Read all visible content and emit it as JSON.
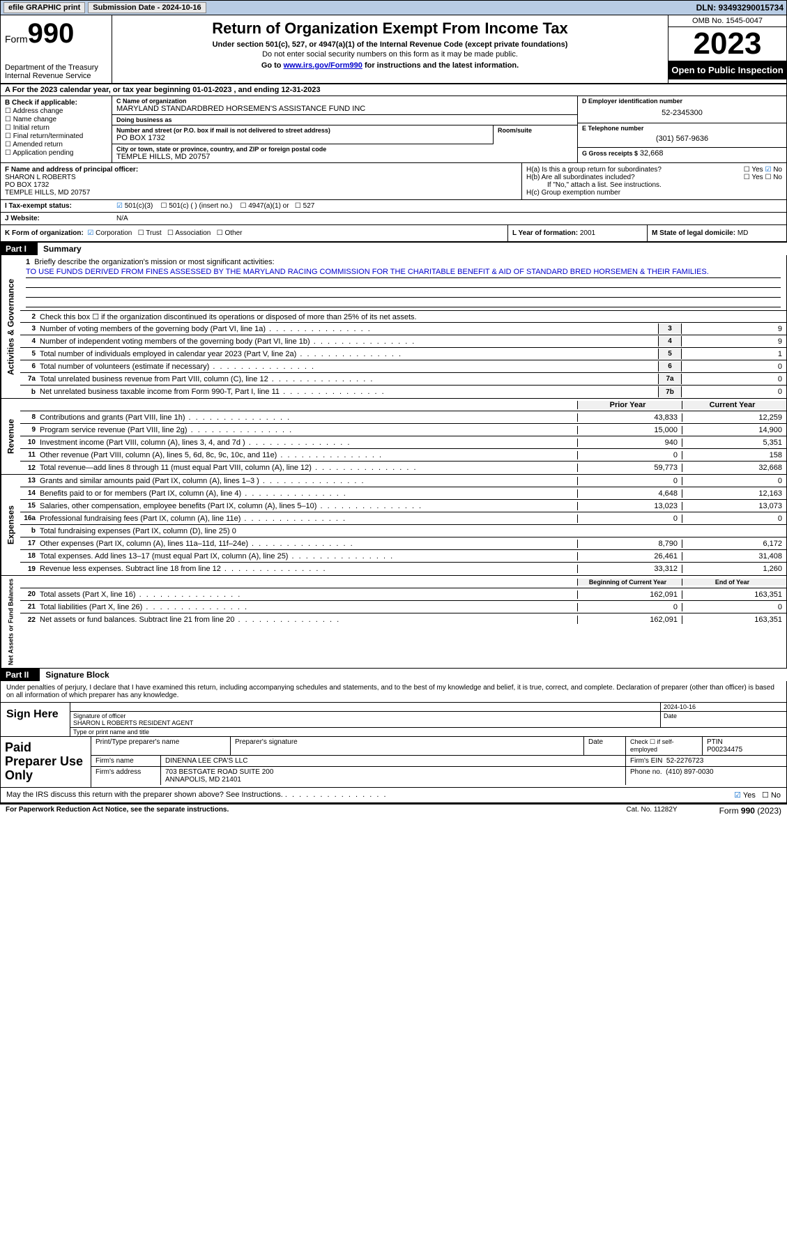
{
  "topbar": {
    "btn1": "efile GRAPHIC print",
    "btn2": "Submission Date - 2024-10-16",
    "dln": "DLN: 93493290015734"
  },
  "header": {
    "form_label": "Form",
    "form_num": "990",
    "dept": "Department of the Treasury",
    "irs": "Internal Revenue Service",
    "title": "Return of Organization Exempt From Income Tax",
    "sub1": "Under section 501(c), 527, or 4947(a)(1) of the Internal Revenue Code (except private foundations)",
    "sub2": "Do not enter social security numbers on this form as it may be made public.",
    "sub3_pre": "Go to ",
    "sub3_link": "www.irs.gov/Form990",
    "sub3_post": " for instructions and the latest information.",
    "omb": "OMB No. 1545-0047",
    "year": "2023",
    "open": "Open to Public Inspection"
  },
  "rowA": "A  For the 2023 calendar year, or tax year beginning 01-01-2023   , and ending 12-31-2023",
  "boxB": {
    "hd": "B Check if applicable:",
    "items": [
      "Address change",
      "Name change",
      "Initial return",
      "Final return/terminated",
      "Amended return",
      "Application pending"
    ]
  },
  "boxC": {
    "name_lbl": "C Name of organization",
    "name": "MARYLAND STANDARDBRED HORSEMEN'S ASSISTANCE FUND INC",
    "dba_lbl": "Doing business as",
    "dba": "",
    "addr_lbl": "Number and street (or P.O. box if mail is not delivered to street address)",
    "addr": "PO BOX 1732",
    "suite_lbl": "Room/suite",
    "suite": "",
    "city_lbl": "City or town, state or province, country, and ZIP or foreign postal code",
    "city": "TEMPLE HILLS, MD  20757"
  },
  "boxD": {
    "ein_lbl": "D Employer identification number",
    "ein": "52-2345300",
    "tel_lbl": "E Telephone number",
    "tel": "(301) 567-9636",
    "gross_lbl": "G Gross receipts $",
    "gross": "32,668"
  },
  "boxF": {
    "lbl": "F Name and address of principal officer:",
    "l1": "SHARON L ROBERTS",
    "l2": "PO BOX 1732",
    "l3": "TEMPLE HILLS, MD  20757"
  },
  "boxH": {
    "ha": "H(a)  Is this a group return for subordinates?",
    "hb": "H(b)  Are all subordinates included?",
    "hb2": "If \"No,\" attach a list. See instructions.",
    "hc": "H(c)  Group exemption number",
    "yes": "Yes",
    "no": "No"
  },
  "rowI": {
    "lbl": "I   Tax-exempt status:",
    "o1": "501(c)(3)",
    "o2": "501(c) (  ) (insert no.)",
    "o3": "4947(a)(1) or",
    "o4": "527"
  },
  "rowJ": {
    "lbl": "J   Website:",
    "val": "N/A"
  },
  "rowK": {
    "lbl": "K Form of organization:",
    "o1": "Corporation",
    "o2": "Trust",
    "o3": "Association",
    "o4": "Other"
  },
  "rowL": {
    "lbl": "L Year of formation:",
    "val": "2001"
  },
  "rowM": {
    "lbl": "M State of legal domicile:",
    "val": "MD"
  },
  "part1": {
    "num": "Part I",
    "title": "Summary"
  },
  "gov": {
    "side": "Activities & Governance",
    "l1_lbl": "Briefly describe the organization's mission or most significant activities:",
    "l1_txt": "TO USE FUNDS DERIVED FROM FINES ASSESSED BY THE MARYLAND RACING COMMISSION FOR THE CHARITABLE BENEFIT & AID OF STANDARD BRED HORSEMEN & THEIR FAMILIES.",
    "l2": "Check this box ☐ if the organization discontinued its operations or disposed of more than 25% of its net assets.",
    "lines": [
      {
        "n": "3",
        "t": "Number of voting members of the governing body (Part VI, line 1a)",
        "box": "3",
        "v": "9"
      },
      {
        "n": "4",
        "t": "Number of independent voting members of the governing body (Part VI, line 1b)",
        "box": "4",
        "v": "9"
      },
      {
        "n": "5",
        "t": "Total number of individuals employed in calendar year 2023 (Part V, line 2a)",
        "box": "5",
        "v": "1"
      },
      {
        "n": "6",
        "t": "Total number of volunteers (estimate if necessary)",
        "box": "6",
        "v": "0"
      },
      {
        "n": "7a",
        "t": "Total unrelated business revenue from Part VIII, column (C), line 12",
        "box": "7a",
        "v": "0"
      },
      {
        "n": "b",
        "t": "Net unrelated business taxable income from Form 990-T, Part I, line 11",
        "box": "7b",
        "v": "0"
      }
    ]
  },
  "rev": {
    "side": "Revenue",
    "hdr_prior": "Prior Year",
    "hdr_curr": "Current Year",
    "lines": [
      {
        "n": "8",
        "t": "Contributions and grants (Part VIII, line 1h)",
        "p": "43,833",
        "c": "12,259"
      },
      {
        "n": "9",
        "t": "Program service revenue (Part VIII, line 2g)",
        "p": "15,000",
        "c": "14,900"
      },
      {
        "n": "10",
        "t": "Investment income (Part VIII, column (A), lines 3, 4, and 7d )",
        "p": "940",
        "c": "5,351"
      },
      {
        "n": "11",
        "t": "Other revenue (Part VIII, column (A), lines 5, 6d, 8c, 9c, 10c, and 11e)",
        "p": "0",
        "c": "158"
      },
      {
        "n": "12",
        "t": "Total revenue—add lines 8 through 11 (must equal Part VIII, column (A), line 12)",
        "p": "59,773",
        "c": "32,668"
      }
    ]
  },
  "exp": {
    "side": "Expenses",
    "lines": [
      {
        "n": "13",
        "t": "Grants and similar amounts paid (Part IX, column (A), lines 1–3 )",
        "p": "0",
        "c": "0"
      },
      {
        "n": "14",
        "t": "Benefits paid to or for members (Part IX, column (A), line 4)",
        "p": "4,648",
        "c": "12,163"
      },
      {
        "n": "15",
        "t": "Salaries, other compensation, employee benefits (Part IX, column (A), lines 5–10)",
        "p": "13,023",
        "c": "13,073"
      },
      {
        "n": "16a",
        "t": "Professional fundraising fees (Part IX, column (A), line 11e)",
        "p": "0",
        "c": "0"
      },
      {
        "n": "b",
        "t": "Total fundraising expenses (Part IX, column (D), line 25) 0",
        "p": "",
        "c": "",
        "grey": true
      },
      {
        "n": "17",
        "t": "Other expenses (Part IX, column (A), lines 11a–11d, 11f–24e)",
        "p": "8,790",
        "c": "6,172"
      },
      {
        "n": "18",
        "t": "Total expenses. Add lines 13–17 (must equal Part IX, column (A), line 25)",
        "p": "26,461",
        "c": "31,408"
      },
      {
        "n": "19",
        "t": "Revenue less expenses. Subtract line 18 from line 12",
        "p": "33,312",
        "c": "1,260"
      }
    ]
  },
  "net": {
    "side": "Net Assets or Fund Balances",
    "hdr_prior": "Beginning of Current Year",
    "hdr_curr": "End of Year",
    "lines": [
      {
        "n": "20",
        "t": "Total assets (Part X, line 16)",
        "p": "162,091",
        "c": "163,351"
      },
      {
        "n": "21",
        "t": "Total liabilities (Part X, line 26)",
        "p": "0",
        "c": "0"
      },
      {
        "n": "22",
        "t": "Net assets or fund balances. Subtract line 21 from line 20",
        "p": "162,091",
        "c": "163,351"
      }
    ]
  },
  "part2": {
    "num": "Part II",
    "title": "Signature Block"
  },
  "sig": {
    "intro": "Under penalties of perjury, I declare that I have examined this return, including accompanying schedules and statements, and to the best of my knowledge and belief, it is true, correct, and complete. Declaration of preparer (other than officer) is based on all information of which preparer has any knowledge.",
    "sign_here": "Sign Here",
    "sig_lbl": "Signature of officer",
    "name": "SHARON L ROBERTS  RESIDENT AGENT",
    "name_lbl": "Type or print name and title",
    "date_lbl": "Date",
    "date": "2024-10-16"
  },
  "prep": {
    "title": "Paid Preparer Use Only",
    "r1": {
      "c1": "Print/Type preparer's name",
      "c2": "Preparer's signature",
      "c3": "Date",
      "c4": "Check ☐ if self-employed",
      "c5": "PTIN",
      "ptin": "P00234475"
    },
    "r2": {
      "lbl": "Firm's name",
      "val": "DINENNA LEE CPA'S LLC",
      "ein_lbl": "Firm's EIN",
      "ein": "52-2276723"
    },
    "r3": {
      "lbl": "Firm's address",
      "l1": "703 BESTGATE ROAD SUITE 200",
      "l2": "ANNAPOLIS, MD  21401",
      "ph_lbl": "Phone no.",
      "ph": "(410) 897-0030"
    }
  },
  "discuss": {
    "txt": "May the IRS discuss this return with the preparer shown above? See Instructions.",
    "yes": "Yes",
    "no": "No"
  },
  "footer": {
    "f1": "For Paperwork Reduction Act Notice, see the separate instructions.",
    "f2": "Cat. No. 11282Y",
    "f3": "Form 990 (2023)"
  }
}
